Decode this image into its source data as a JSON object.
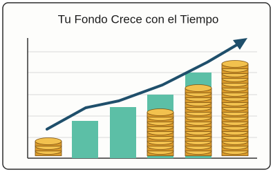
{
  "header": {
    "title": "Tu Fondo Crece con el Tiempo"
  }
}
